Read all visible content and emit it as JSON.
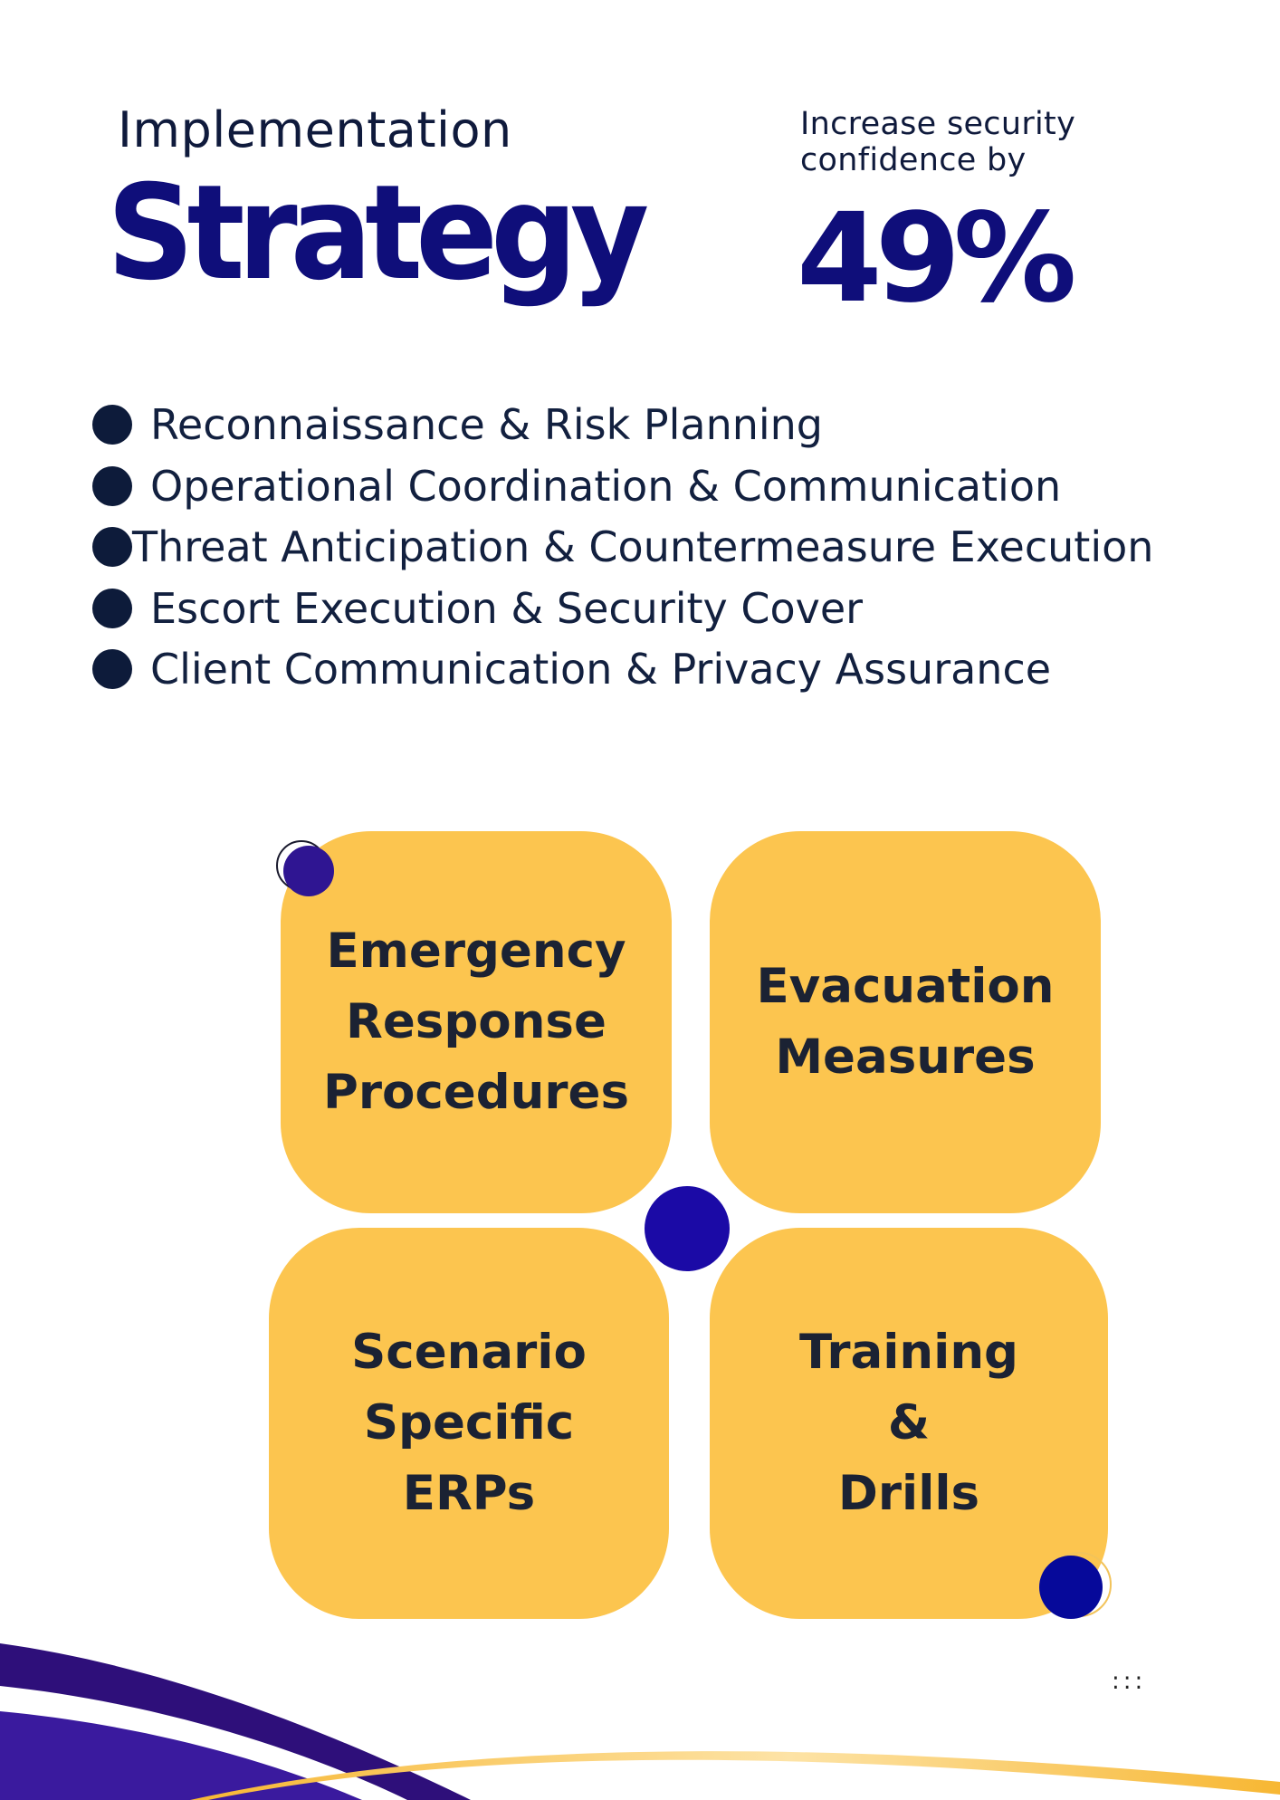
{
  "header": {
    "implementation_label": "Implementation",
    "strategy_title": "Strategy",
    "confidence_text": "Increase security confidence by",
    "confidence_value": "49%"
  },
  "bullets": [
    "Reconnaissance & Risk Planning",
    "Operational Coordination & Communication",
    "Threat Anticipation & Countermeasure Execution",
    "Escort Execution & Security Cover",
    "Client Communication & Privacy Assurance"
  ],
  "cards": [
    "Emergency\n Response\nProcedures",
    "Evacuation\nMeasures",
    "Scenario\nSpecific\n ERPs",
    "Training\n&\nDrills"
  ],
  "footer_mark": ":::",
  "colors": {
    "navy_text": "#0f0e7a",
    "card_yellow": "#fcc54f",
    "accent_purple": "#1b0aa6",
    "wave_purple": "#3a1a9e",
    "wave_gold": "#f7b733"
  }
}
